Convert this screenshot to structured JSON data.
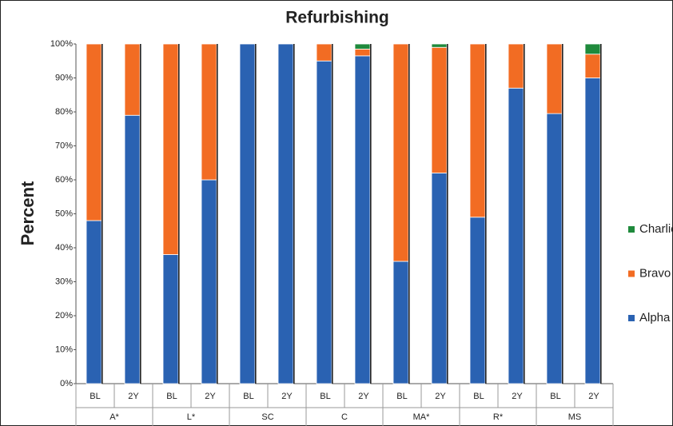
{
  "chart_data": {
    "type": "stacked_bar",
    "title": "Refurbishing",
    "y_label": "Percent",
    "categories": [
      "BL",
      "2Y",
      "BL",
      "2Y",
      "BL",
      "2Y",
      "BL",
      "2Y",
      "BL",
      "2Y",
      "BL",
      "2Y",
      "BL",
      "2Y"
    ],
    "groups": [
      "A*",
      "L*",
      "SC",
      "C",
      "MA*",
      "R*",
      "MS"
    ],
    "series": [
      {
        "name": "Alpha",
        "color": "#2a62b2",
        "values": [
          48,
          79,
          38,
          60,
          100,
          100,
          95,
          96.5,
          36,
          62,
          49,
          87,
          79.5,
          90
        ]
      },
      {
        "name": "Bravo",
        "color": "#f26c23",
        "values": [
          52,
          21,
          62,
          40,
          0,
          0,
          5,
          2,
          64,
          37,
          51,
          13,
          20.5,
          7
        ]
      },
      {
        "name": "Charlie",
        "color": "#1f8a3c",
        "values": [
          0,
          0,
          0,
          0,
          0,
          0,
          0,
          1.5,
          0,
          1,
          0,
          0,
          0,
          3
        ]
      }
    ],
    "ylim": [
      0,
      100
    ],
    "yticks": [
      {
        "value": 0,
        "label": "0%"
      },
      {
        "value": 10,
        "label": "10%"
      },
      {
        "value": 20,
        "label": "20%"
      },
      {
        "value": 30,
        "label": "30%"
      },
      {
        "value": 40,
        "label": "40%"
      },
      {
        "value": 50,
        "label": "50%"
      },
      {
        "value": 60,
        "label": "60%"
      },
      {
        "value": 70,
        "label": "70%"
      },
      {
        "value": 80,
        "label": "80%"
      },
      {
        "value": 90,
        "label": "90%"
      },
      {
        "value": 100,
        "label": "100%"
      }
    ],
    "legend": "right"
  }
}
